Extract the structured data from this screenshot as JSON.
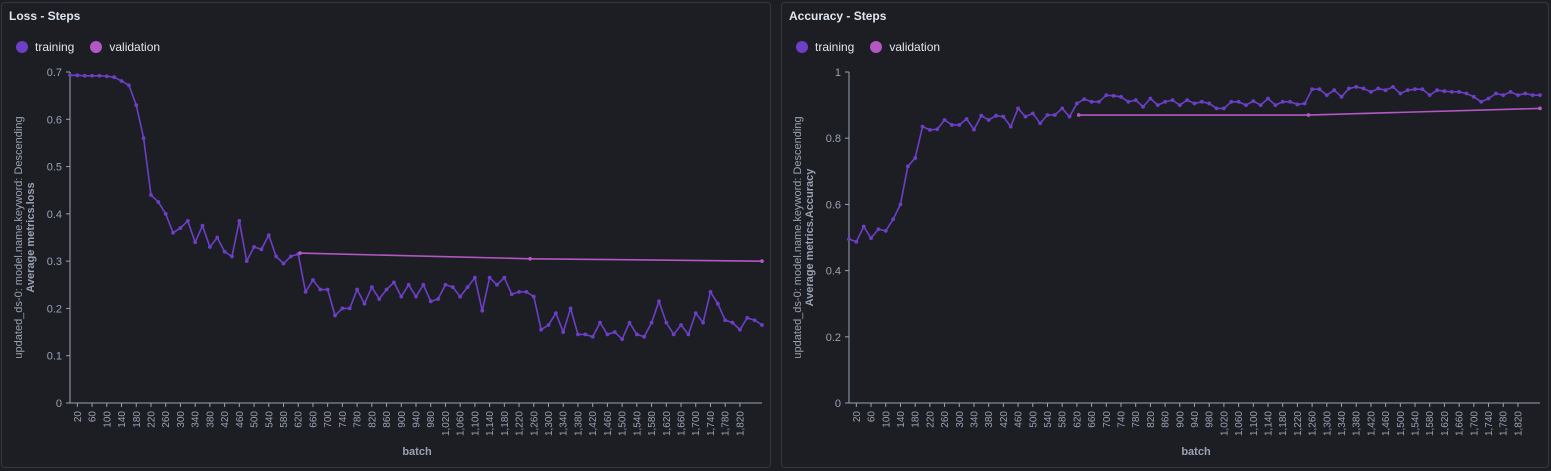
{
  "colors": {
    "training": "#6c3fc6",
    "validation": "#b357c4",
    "axis": "#98a2b3"
  },
  "legend": {
    "training": "training",
    "validation": "validation"
  },
  "chart_data": [
    {
      "id": "loss",
      "type": "line",
      "title": "Loss - Steps",
      "xlabel": "batch",
      "ylabel_prefix": "updated_ds-0: model.name.keyword: Descending",
      "ylabel": "Average metrics.loss",
      "ylim": [
        0,
        0.7
      ],
      "yticks": [
        0,
        0.1,
        0.2,
        0.3,
        0.4,
        0.5,
        0.6,
        0.7
      ],
      "xrange": [
        0,
        1880
      ],
      "xticks": [
        "20",
        "60",
        "100",
        "140",
        "180",
        "220",
        "260",
        "300",
        "340",
        "380",
        "420",
        "460",
        "500",
        "540",
        "580",
        "620",
        "660",
        "700",
        "740",
        "780",
        "820",
        "860",
        "900",
        "940",
        "980",
        "1,020",
        "1,060",
        "1,100",
        "1,140",
        "1,180",
        "1,220",
        "1,260",
        "1,300",
        "1,340",
        "1,380",
        "1,420",
        "1,460",
        "1,500",
        "1,540",
        "1,580",
        "1,620",
        "1,660",
        "1,700",
        "1,740",
        "1,780",
        "1,820"
      ],
      "grid": false,
      "legend_position": "top-left",
      "series": [
        {
          "name": "training",
          "x_start": 0,
          "x_step": 20,
          "values": [
            0.693,
            0.693,
            0.692,
            0.692,
            0.692,
            0.691,
            0.689,
            0.681,
            0.672,
            0.63,
            0.56,
            0.44,
            0.425,
            0.4,
            0.36,
            0.37,
            0.385,
            0.34,
            0.375,
            0.33,
            0.35,
            0.32,
            0.31,
            0.385,
            0.3,
            0.33,
            0.325,
            0.355,
            0.31,
            0.295,
            0.31,
            0.315,
            0.235,
            0.26,
            0.24,
            0.24,
            0.185,
            0.2,
            0.2,
            0.24,
            0.21,
            0.245,
            0.22,
            0.24,
            0.255,
            0.225,
            0.25,
            0.225,
            0.25,
            0.215,
            0.22,
            0.25,
            0.245,
            0.225,
            0.245,
            0.265,
            0.195,
            0.265,
            0.25,
            0.265,
            0.23,
            0.235,
            0.235,
            0.225,
            0.155,
            0.165,
            0.19,
            0.15,
            0.2,
            0.145,
            0.145,
            0.14,
            0.17,
            0.145,
            0.15,
            0.135,
            0.17,
            0.145,
            0.14,
            0.17,
            0.215,
            0.17,
            0.145,
            0.165,
            0.145,
            0.19,
            0.17,
            0.235,
            0.21,
            0.175,
            0.17,
            0.155,
            0.18,
            0.175,
            0.165
          ]
        },
        {
          "name": "validation",
          "x": [
            625,
            1250,
            1880
          ],
          "values": [
            0.317,
            0.305,
            0.3
          ]
        }
      ]
    },
    {
      "id": "accuracy",
      "type": "line",
      "title": "Accuracy - Steps",
      "xlabel": "batch",
      "ylabel_prefix": "updated_ds-0: model.name.keyword: Descending",
      "ylabel": "Average metrics.Accuracy",
      "ylim": [
        0,
        1
      ],
      "yticks": [
        0,
        0.2,
        0.4,
        0.6,
        0.8,
        1
      ],
      "ytick_labels": [
        "0",
        "0.2",
        "0.4",
        "0.6",
        "0.8",
        "1"
      ],
      "xrange": [
        0,
        1880
      ],
      "xticks": [
        "20",
        "60",
        "100",
        "140",
        "180",
        "220",
        "260",
        "300",
        "340",
        "380",
        "420",
        "460",
        "500",
        "540",
        "580",
        "620",
        "660",
        "700",
        "740",
        "780",
        "820",
        "860",
        "900",
        "940",
        "980",
        "1,020",
        "1,060",
        "1,100",
        "1,140",
        "1,180",
        "1,220",
        "1,260",
        "1,300",
        "1,340",
        "1,380",
        "1,420",
        "1,460",
        "1,500",
        "1,540",
        "1,580",
        "1,620",
        "1,660",
        "1,700",
        "1,740",
        "1,780",
        "1,820"
      ],
      "grid": false,
      "legend_position": "top-left",
      "series": [
        {
          "name": "training",
          "x_start": 0,
          "x_step": 20,
          "values": [
            0.495,
            0.487,
            0.533,
            0.498,
            0.525,
            0.52,
            0.555,
            0.6,
            0.715,
            0.74,
            0.835,
            0.825,
            0.827,
            0.855,
            0.84,
            0.84,
            0.858,
            0.826,
            0.868,
            0.855,
            0.868,
            0.865,
            0.835,
            0.89,
            0.865,
            0.875,
            0.845,
            0.87,
            0.87,
            0.89,
            0.865,
            0.905,
            0.918,
            0.91,
            0.91,
            0.93,
            0.928,
            0.925,
            0.91,
            0.915,
            0.895,
            0.92,
            0.9,
            0.91,
            0.915,
            0.9,
            0.915,
            0.905,
            0.91,
            0.905,
            0.89,
            0.89,
            0.91,
            0.91,
            0.9,
            0.912,
            0.9,
            0.92,
            0.9,
            0.91,
            0.91,
            0.902,
            0.905,
            0.948,
            0.948,
            0.93,
            0.945,
            0.925,
            0.95,
            0.955,
            0.95,
            0.94,
            0.95,
            0.945,
            0.955,
            0.935,
            0.945,
            0.948,
            0.948,
            0.93,
            0.945,
            0.942,
            0.94,
            0.94,
            0.935,
            0.925,
            0.91,
            0.92,
            0.935,
            0.93,
            0.94,
            0.93,
            0.935,
            0.93,
            0.93
          ]
        },
        {
          "name": "validation",
          "x": [
            625,
            1250,
            1880
          ],
          "values": [
            0.87,
            0.87,
            0.89
          ]
        }
      ]
    }
  ]
}
